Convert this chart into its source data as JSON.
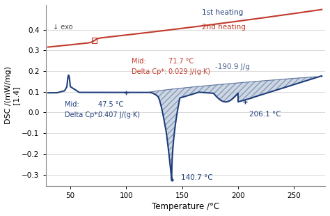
{
  "xlabel": "Temperature /°C",
  "ylabel": "DSC /(mW/mg)\n[1.4]",
  "xlim": [
    28,
    278
  ],
  "ylim": [
    -0.355,
    0.52
  ],
  "yticks": [
    -0.3,
    -0.2,
    -0.1,
    0.0,
    0.1,
    0.2,
    0.3,
    0.4
  ],
  "xticks": [
    50,
    100,
    150,
    200,
    250
  ],
  "line_red_color": "#c0392b",
  "line_blue_color": "#1f3d7a",
  "fill_face_color": "#c5d0e0",
  "fill_edge_color": "#7a8faf",
  "legend_1st": "1st heating",
  "legend_2nd": "2nd heating",
  "mid1_label": "Mid:",
  "mid1_val": "71.7 °C",
  "dcp1_label": "Delta Cp*:",
  "dcp1_val": "0.029 J/(g·K)",
  "mid2_label": "Mid:",
  "mid2_val": "47.5 °C",
  "dcp2_label": "Delta Cp*:",
  "dcp2_val": "0.407 J/(g·K)",
  "ann_enthalpy": "-190.9 J/g",
  "ann_min": "140.7 °C",
  "ann_206": "206.1 °C",
  "exo_text": "↓ exo",
  "bg_color": "#ffffff"
}
